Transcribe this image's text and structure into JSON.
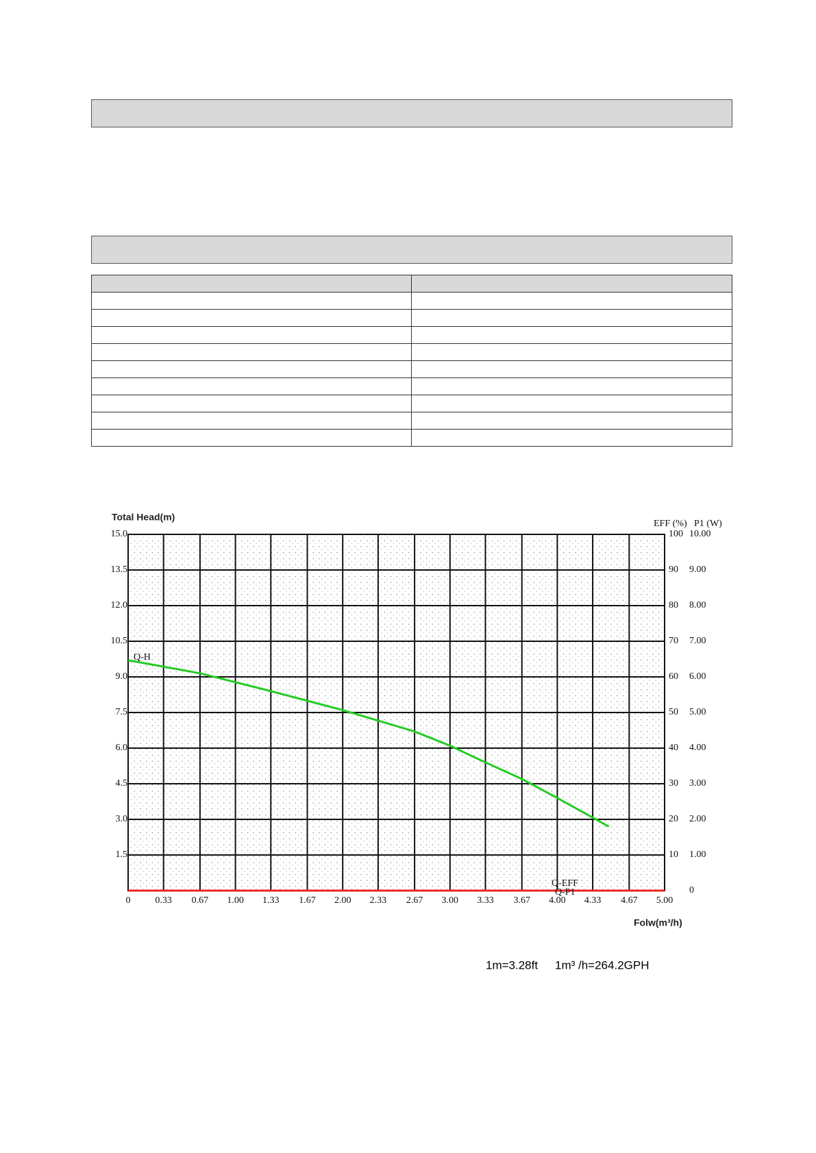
{
  "chart_data": {
    "type": "line",
    "y_label": "Total Head(m)",
    "y2_label": "EFF (%)",
    "y3_label": "P1 (W)",
    "x_label": "Folw(m³/h)",
    "xlim": [
      0,
      5
    ],
    "ylim": [
      0,
      15
    ],
    "y2lim": [
      0,
      100
    ],
    "y3lim": [
      0,
      10
    ],
    "xticks": [
      0,
      0.33,
      0.67,
      {
        "value": 1,
        "label": "1.00"
      },
      1.33,
      1.67,
      {
        "value": 2,
        "label": "2.00"
      },
      2.33,
      2.67,
      {
        "value": 3,
        "label": "3.00"
      },
      3.33,
      3.67,
      {
        "value": 4,
        "label": "4.00"
      },
      4.33,
      4.67,
      {
        "value": 5,
        "label": "5.00"
      }
    ],
    "yticks": [
      1.5,
      {
        "value": 3,
        "label": "3.0"
      },
      4.5,
      {
        "value": 6,
        "label": "6.0"
      },
      7.5,
      {
        "value": 9,
        "label": "9.0"
      },
      10.5,
      {
        "value": 12,
        "label": "12.0"
      },
      13.5,
      {
        "value": 15,
        "label": "15.0"
      }
    ],
    "y2ticks": [
      10,
      20,
      30,
      40,
      50,
      60,
      70,
      80,
      90,
      100
    ],
    "y3ticks": [
      0,
      {
        "value": 1,
        "label": "1.00"
      },
      {
        "value": 2,
        "label": "2.00"
      },
      {
        "value": 3,
        "label": "3.00"
      },
      {
        "value": 4,
        "label": "4.00"
      },
      {
        "value": 5,
        "label": "5.00"
      },
      {
        "value": 6,
        "label": "6.00"
      },
      {
        "value": 7,
        "label": "7.00"
      },
      {
        "value": 8,
        "label": "8.00"
      },
      {
        "value": 9,
        "label": "9.00"
      },
      {
        "value": 10,
        "label": "10.00"
      }
    ],
    "grid": true,
    "series": [
      {
        "name": "Q-H",
        "color": "#22cc22",
        "x": [
          0,
          0.67,
          1.33,
          2.0,
          2.67,
          3.0,
          3.33,
          3.67,
          4.0,
          4.48
        ],
        "values": [
          9.7,
          9.15,
          8.4,
          7.6,
          6.7,
          6.1,
          5.4,
          4.7,
          3.9,
          2.7
        ]
      },
      {
        "name": "Q-EFF",
        "color": "#ee2222",
        "axis": "y2",
        "x": [
          0,
          5
        ],
        "values": [
          0,
          0
        ]
      },
      {
        "name": "Q-P1",
        "color": "#ee2222",
        "axis": "y3",
        "x": [
          0,
          5
        ],
        "values": [
          0,
          0
        ]
      }
    ],
    "notes": [
      "1m=3.28ft",
      "1m³ /h=264.2GPH"
    ]
  }
}
